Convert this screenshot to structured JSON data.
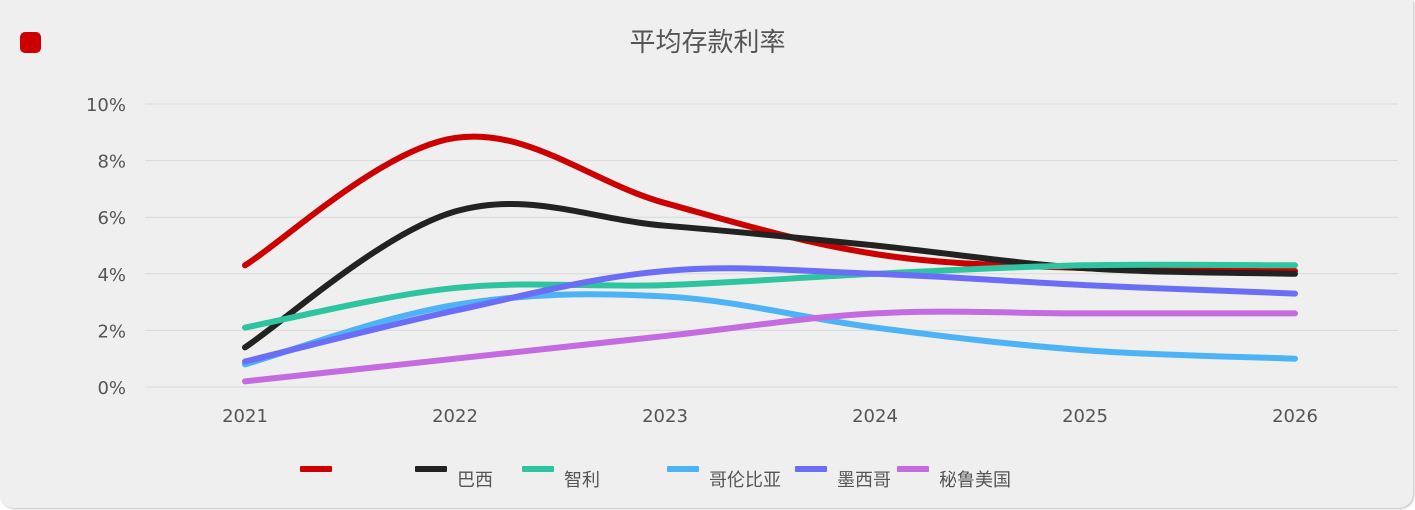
{
  "badge_color": "#cc0000",
  "chart_data": {
    "type": "line",
    "title": "平均存款利率",
    "xlabel": "",
    "ylabel": "",
    "categories": [
      "2021",
      "2022",
      "2023",
      "2024",
      "2025",
      "2026"
    ],
    "ylim": [
      0,
      10
    ],
    "yticks": [
      "0%",
      "2%",
      "4%",
      "6%",
      "8%",
      "10%"
    ],
    "grid": true,
    "legend_position": "bottom",
    "series": [
      {
        "name": "",
        "color": "#cc0000",
        "values": [
          4.3,
          8.8,
          6.5,
          4.7,
          4.2,
          4.1
        ]
      },
      {
        "name": "巴西",
        "color": "#222222",
        "values": [
          1.4,
          6.2,
          5.7,
          5.0,
          4.2,
          4.0
        ]
      },
      {
        "name": "智利",
        "color": "#2ec4a0",
        "values": [
          2.1,
          3.5,
          3.6,
          4.0,
          4.3,
          4.3
        ]
      },
      {
        "name": "哥伦比亚",
        "color": "#4db3f5",
        "values": [
          0.8,
          2.9,
          3.2,
          2.1,
          1.3,
          1.0
        ]
      },
      {
        "name": "墨西哥",
        "color": "#6b6ef5",
        "values": [
          0.9,
          2.7,
          4.1,
          4.0,
          3.6,
          3.3
        ]
      },
      {
        "name": "秘鲁美国",
        "color": "#c46be0",
        "values": [
          0.2,
          1.0,
          1.8,
          2.6,
          2.6,
          2.6
        ]
      }
    ]
  }
}
